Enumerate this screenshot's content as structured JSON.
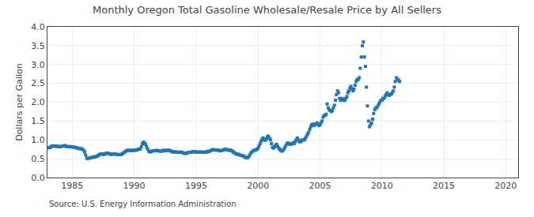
{
  "chart_data": {
    "type": "scatter",
    "title": "Monthly Oregon Total Gasoline Wholesale/Resale Price by All Sellers",
    "ylabel": "Dollars per Gallon",
    "annotations": [
      "Source: U.S. Energy Information Administration"
    ],
    "marker": "square",
    "grid": true,
    "xlim": [
      1983,
      2021
    ],
    "ylim": [
      0.0,
      4.0
    ],
    "xticks": [
      1985,
      1990,
      1995,
      2000,
      2005,
      2010,
      2015,
      2020
    ],
    "yticks": [
      {
        "value": 0.0,
        "label": "0.0"
      },
      0.5,
      {
        "value": 1.0,
        "label": "1.0"
      },
      1.5,
      {
        "value": 2.0,
        "label": "2.0"
      },
      2.5,
      {
        "value": 3.0,
        "label": "3.0"
      },
      3.5,
      {
        "value": 4.0,
        "label": "4.0"
      }
    ],
    "x": [
      1983.08,
      1983.17,
      1983.25,
      1983.33,
      1983.42,
      1983.5,
      1983.58,
      1983.67,
      1983.75,
      1983.83,
      1983.92,
      1984.0,
      1984.08,
      1984.17,
      1984.25,
      1984.33,
      1984.42,
      1984.5,
      1984.58,
      1984.67,
      1984.75,
      1984.83,
      1984.92,
      1985.0,
      1985.08,
      1985.17,
      1985.25,
      1985.33,
      1985.42,
      1985.5,
      1985.58,
      1985.67,
      1985.75,
      1985.83,
      1985.92,
      1986.0,
      1986.08,
      1986.17,
      1986.25,
      1986.33,
      1986.42,
      1986.5,
      1986.58,
      1986.67,
      1986.75,
      1986.83,
      1986.92,
      1987.0,
      1987.08,
      1987.17,
      1987.25,
      1987.33,
      1987.42,
      1987.5,
      1987.58,
      1987.67,
      1987.75,
      1987.83,
      1987.92,
      1988.0,
      1988.08,
      1988.17,
      1988.25,
      1988.33,
      1988.42,
      1988.5,
      1988.58,
      1988.67,
      1988.75,
      1988.83,
      1988.92,
      1989.0,
      1989.08,
      1989.17,
      1989.25,
      1989.33,
      1989.42,
      1989.5,
      1989.58,
      1989.67,
      1989.75,
      1989.83,
      1989.92,
      1990.0,
      1990.08,
      1990.17,
      1990.25,
      1990.33,
      1990.42,
      1990.5,
      1990.58,
      1990.67,
      1990.75,
      1990.83,
      1990.92,
      1991.0,
      1991.08,
      1991.17,
      1991.25,
      1991.33,
      1991.42,
      1991.5,
      1991.58,
      1991.67,
      1991.75,
      1991.83,
      1991.92,
      1992.0,
      1992.08,
      1992.17,
      1992.25,
      1992.33,
      1992.42,
      1992.5,
      1992.58,
      1992.67,
      1992.75,
      1992.83,
      1992.92,
      1993.0,
      1993.08,
      1993.17,
      1993.25,
      1993.33,
      1993.42,
      1993.5,
      1993.58,
      1993.67,
      1993.75,
      1993.83,
      1993.92,
      1994.0,
      1994.08,
      1994.17,
      1994.25,
      1994.33,
      1994.42,
      1994.5,
      1994.58,
      1994.67,
      1994.75,
      1994.83,
      1994.92,
      1995.0,
      1995.08,
      1995.17,
      1995.25,
      1995.33,
      1995.42,
      1995.5,
      1995.58,
      1995.67,
      1995.75,
      1995.83,
      1995.92,
      1996.0,
      1996.08,
      1996.17,
      1996.25,
      1996.33,
      1996.42,
      1996.5,
      1996.58,
      1996.67,
      1996.75,
      1996.83,
      1996.92,
      1997.0,
      1997.08,
      1997.17,
      1997.25,
      1997.33,
      1997.42,
      1997.5,
      1997.58,
      1997.67,
      1997.75,
      1997.83,
      1997.92,
      1998.0,
      1998.08,
      1998.17,
      1998.25,
      1998.33,
      1998.42,
      1998.5,
      1998.58,
      1998.67,
      1998.75,
      1998.83,
      1998.92,
      1999.0,
      1999.08,
      1999.17,
      1999.25,
      1999.33,
      1999.42,
      1999.5,
      1999.58,
      1999.67,
      1999.75,
      1999.83,
      1999.92,
      2000.0,
      2000.08,
      2000.17,
      2000.25,
      2000.33,
      2000.42,
      2000.5,
      2000.58,
      2000.67,
      2000.75,
      2000.83,
      2000.92,
      2001.0,
      2001.08,
      2001.17,
      2001.25,
      2001.33,
      2001.42,
      2001.5,
      2001.58,
      2001.67,
      2001.75,
      2001.83,
      2001.92,
      2002.0,
      2002.08,
      2002.17,
      2002.25,
      2002.33,
      2002.42,
      2002.5,
      2002.58,
      2002.67,
      2002.75,
      2002.83,
      2002.92,
      2003.0,
      2003.08,
      2003.17,
      2003.25,
      2003.33,
      2003.42,
      2003.5,
      2003.58,
      2003.67,
      2003.75,
      2003.83,
      2003.92,
      2004.0,
      2004.08,
      2004.17,
      2004.25,
      2004.33,
      2004.42,
      2004.5,
      2004.58,
      2004.67,
      2004.75,
      2004.83,
      2004.92,
      2005.0,
      2005.08,
      2005.17,
      2005.25,
      2005.33,
      2005.42,
      2005.5,
      2005.58,
      2005.67,
      2005.75,
      2005.83,
      2005.92,
      2006.0,
      2006.08,
      2006.17,
      2006.25,
      2006.33,
      2006.42,
      2006.5,
      2006.58,
      2006.67,
      2006.75,
      2006.83,
      2006.92,
      2007.0,
      2007.08,
      2007.17,
      2007.25,
      2007.33,
      2007.42,
      2007.5,
      2007.58,
      2007.67,
      2007.75,
      2007.83,
      2007.92,
      2008.0,
      2008.08,
      2008.17,
      2008.25,
      2008.33,
      2008.42,
      2008.5,
      2008.58,
      2008.67,
      2008.75,
      2008.83,
      2008.92,
      2009.0,
      2009.08,
      2009.17,
      2009.25,
      2009.33,
      2009.42,
      2009.5,
      2009.58,
      2009.67,
      2009.75,
      2009.83,
      2009.92,
      2010.0,
      2010.08,
      2010.17,
      2010.25,
      2010.33,
      2010.42,
      2010.5,
      2010.58,
      2010.67,
      2010.75,
      2010.83,
      2010.92,
      2011.0,
      2011.08,
      2011.17,
      2011.25,
      2011.33,
      2011.42
    ],
    "values": [
      0.79,
      0.8,
      0.8,
      0.83,
      0.84,
      0.84,
      0.83,
      0.83,
      0.83,
      0.83,
      0.82,
      0.82,
      0.82,
      0.83,
      0.84,
      0.84,
      0.85,
      0.83,
      0.82,
      0.82,
      0.82,
      0.82,
      0.82,
      0.81,
      0.81,
      0.8,
      0.8,
      0.8,
      0.78,
      0.77,
      0.77,
      0.77,
      0.76,
      0.75,
      0.72,
      0.68,
      0.6,
      0.52,
      0.5,
      0.51,
      0.52,
      0.53,
      0.53,
      0.54,
      0.55,
      0.55,
      0.55,
      0.57,
      0.58,
      0.6,
      0.62,
      0.63,
      0.63,
      0.61,
      0.62,
      0.63,
      0.65,
      0.65,
      0.64,
      0.63,
      0.62,
      0.61,
      0.62,
      0.63,
      0.63,
      0.62,
      0.61,
      0.61,
      0.61,
      0.61,
      0.61,
      0.62,
      0.64,
      0.66,
      0.68,
      0.7,
      0.72,
      0.72,
      0.72,
      0.72,
      0.72,
      0.72,
      0.72,
      0.72,
      0.73,
      0.73,
      0.74,
      0.75,
      0.75,
      0.76,
      0.82,
      0.9,
      0.94,
      0.92,
      0.88,
      0.82,
      0.76,
      0.7,
      0.68,
      0.68,
      0.7,
      0.71,
      0.71,
      0.71,
      0.72,
      0.72,
      0.71,
      0.71,
      0.7,
      0.7,
      0.7,
      0.72,
      0.72,
      0.72,
      0.71,
      0.72,
      0.73,
      0.72,
      0.71,
      0.7,
      0.68,
      0.68,
      0.68,
      0.68,
      0.68,
      0.67,
      0.67,
      0.67,
      0.68,
      0.67,
      0.66,
      0.65,
      0.64,
      0.64,
      0.65,
      0.66,
      0.67,
      0.67,
      0.67,
      0.68,
      0.69,
      0.69,
      0.68,
      0.68,
      0.68,
      0.67,
      0.67,
      0.68,
      0.68,
      0.67,
      0.67,
      0.67,
      0.68,
      0.68,
      0.68,
      0.69,
      0.7,
      0.71,
      0.73,
      0.74,
      0.74,
      0.73,
      0.73,
      0.73,
      0.73,
      0.72,
      0.71,
      0.71,
      0.72,
      0.73,
      0.74,
      0.75,
      0.75,
      0.74,
      0.73,
      0.72,
      0.73,
      0.72,
      0.7,
      0.68,
      0.66,
      0.64,
      0.62,
      0.62,
      0.62,
      0.6,
      0.59,
      0.59,
      0.58,
      0.57,
      0.55,
      0.53,
      0.52,
      0.53,
      0.56,
      0.6,
      0.65,
      0.68,
      0.7,
      0.72,
      0.73,
      0.73,
      0.75,
      0.78,
      0.84,
      0.9,
      0.97,
      1.02,
      1.05,
      1.0,
      0.99,
      1.02,
      1.08,
      1.1,
      1.05,
      1.0,
      0.9,
      0.8,
      0.78,
      0.82,
      0.86,
      0.88,
      0.83,
      0.78,
      0.75,
      0.72,
      0.7,
      0.72,
      0.75,
      0.8,
      0.85,
      0.9,
      0.92,
      0.9,
      0.88,
      0.88,
      0.9,
      0.92,
      0.9,
      0.95,
      1.0,
      1.05,
      1.0,
      0.95,
      0.95,
      0.97,
      1.0,
      1.0,
      1.0,
      1.05,
      1.1,
      1.15,
      1.2,
      1.28,
      1.35,
      1.4,
      1.42,
      1.38,
      1.4,
      1.42,
      1.45,
      1.42,
      1.38,
      1.4,
      1.45,
      1.5,
      1.6,
      1.65,
      1.65,
      1.68,
      1.95,
      1.85,
      1.8,
      1.78,
      1.75,
      1.78,
      1.85,
      1.92,
      2.05,
      2.2,
      2.3,
      2.25,
      2.1,
      2.05,
      2.1,
      2.08,
      2.05,
      2.05,
      2.1,
      2.15,
      2.25,
      2.3,
      2.38,
      2.42,
      2.35,
      2.3,
      2.35,
      2.45,
      2.55,
      2.6,
      2.6,
      2.65,
      2.9,
      3.2,
      3.5,
      3.6,
      3.2,
      2.95,
      2.4,
      1.9,
      1.5,
      1.35,
      1.4,
      1.45,
      1.55,
      1.7,
      1.8,
      1.85,
      1.85,
      1.9,
      1.95,
      2.0,
      2.05,
      2.05,
      2.1,
      2.1,
      2.15,
      2.2,
      2.25,
      2.2,
      2.18,
      2.2,
      2.22,
      2.25,
      2.3,
      2.4,
      2.55,
      2.65,
      2.6,
      2.6,
      2.55
    ]
  }
}
